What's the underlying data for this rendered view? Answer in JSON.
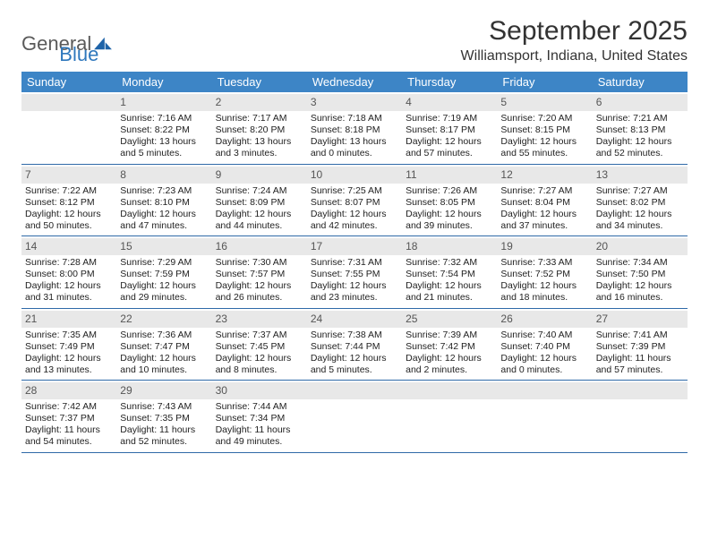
{
  "brand": {
    "word1": "General",
    "word2": "Blue",
    "mark_color": "#1e63a8"
  },
  "title": "September 2025",
  "location": "Williamsport, Indiana, United States",
  "header_bg": "#3d85c6",
  "band_bg": "#e8e8e8",
  "row_border": "#2f6aa8",
  "weekdays": [
    "Sunday",
    "Monday",
    "Tuesday",
    "Wednesday",
    "Thursday",
    "Friday",
    "Saturday"
  ],
  "weeks": [
    [
      null,
      {
        "n": "1",
        "sr": "7:16 AM",
        "ss": "8:22 PM",
        "dl": "13 hours and 5 minutes."
      },
      {
        "n": "2",
        "sr": "7:17 AM",
        "ss": "8:20 PM",
        "dl": "13 hours and 3 minutes."
      },
      {
        "n": "3",
        "sr": "7:18 AM",
        "ss": "8:18 PM",
        "dl": "13 hours and 0 minutes."
      },
      {
        "n": "4",
        "sr": "7:19 AM",
        "ss": "8:17 PM",
        "dl": "12 hours and 57 minutes."
      },
      {
        "n": "5",
        "sr": "7:20 AM",
        "ss": "8:15 PM",
        "dl": "12 hours and 55 minutes."
      },
      {
        "n": "6",
        "sr": "7:21 AM",
        "ss": "8:13 PM",
        "dl": "12 hours and 52 minutes."
      }
    ],
    [
      {
        "n": "7",
        "sr": "7:22 AM",
        "ss": "8:12 PM",
        "dl": "12 hours and 50 minutes."
      },
      {
        "n": "8",
        "sr": "7:23 AM",
        "ss": "8:10 PM",
        "dl": "12 hours and 47 minutes."
      },
      {
        "n": "9",
        "sr": "7:24 AM",
        "ss": "8:09 PM",
        "dl": "12 hours and 44 minutes."
      },
      {
        "n": "10",
        "sr": "7:25 AM",
        "ss": "8:07 PM",
        "dl": "12 hours and 42 minutes."
      },
      {
        "n": "11",
        "sr": "7:26 AM",
        "ss": "8:05 PM",
        "dl": "12 hours and 39 minutes."
      },
      {
        "n": "12",
        "sr": "7:27 AM",
        "ss": "8:04 PM",
        "dl": "12 hours and 37 minutes."
      },
      {
        "n": "13",
        "sr": "7:27 AM",
        "ss": "8:02 PM",
        "dl": "12 hours and 34 minutes."
      }
    ],
    [
      {
        "n": "14",
        "sr": "7:28 AM",
        "ss": "8:00 PM",
        "dl": "12 hours and 31 minutes."
      },
      {
        "n": "15",
        "sr": "7:29 AM",
        "ss": "7:59 PM",
        "dl": "12 hours and 29 minutes."
      },
      {
        "n": "16",
        "sr": "7:30 AM",
        "ss": "7:57 PM",
        "dl": "12 hours and 26 minutes."
      },
      {
        "n": "17",
        "sr": "7:31 AM",
        "ss": "7:55 PM",
        "dl": "12 hours and 23 minutes."
      },
      {
        "n": "18",
        "sr": "7:32 AM",
        "ss": "7:54 PM",
        "dl": "12 hours and 21 minutes."
      },
      {
        "n": "19",
        "sr": "7:33 AM",
        "ss": "7:52 PM",
        "dl": "12 hours and 18 minutes."
      },
      {
        "n": "20",
        "sr": "7:34 AM",
        "ss": "7:50 PM",
        "dl": "12 hours and 16 minutes."
      }
    ],
    [
      {
        "n": "21",
        "sr": "7:35 AM",
        "ss": "7:49 PM",
        "dl": "12 hours and 13 minutes."
      },
      {
        "n": "22",
        "sr": "7:36 AM",
        "ss": "7:47 PM",
        "dl": "12 hours and 10 minutes."
      },
      {
        "n": "23",
        "sr": "7:37 AM",
        "ss": "7:45 PM",
        "dl": "12 hours and 8 minutes."
      },
      {
        "n": "24",
        "sr": "7:38 AM",
        "ss": "7:44 PM",
        "dl": "12 hours and 5 minutes."
      },
      {
        "n": "25",
        "sr": "7:39 AM",
        "ss": "7:42 PM",
        "dl": "12 hours and 2 minutes."
      },
      {
        "n": "26",
        "sr": "7:40 AM",
        "ss": "7:40 PM",
        "dl": "12 hours and 0 minutes."
      },
      {
        "n": "27",
        "sr": "7:41 AM",
        "ss": "7:39 PM",
        "dl": "11 hours and 57 minutes."
      }
    ],
    [
      {
        "n": "28",
        "sr": "7:42 AM",
        "ss": "7:37 PM",
        "dl": "11 hours and 54 minutes."
      },
      {
        "n": "29",
        "sr": "7:43 AM",
        "ss": "7:35 PM",
        "dl": "11 hours and 52 minutes."
      },
      {
        "n": "30",
        "sr": "7:44 AM",
        "ss": "7:34 PM",
        "dl": "11 hours and 49 minutes."
      },
      null,
      null,
      null,
      null
    ]
  ],
  "labels": {
    "sunrise": "Sunrise:",
    "sunset": "Sunset:",
    "daylight": "Daylight:"
  }
}
